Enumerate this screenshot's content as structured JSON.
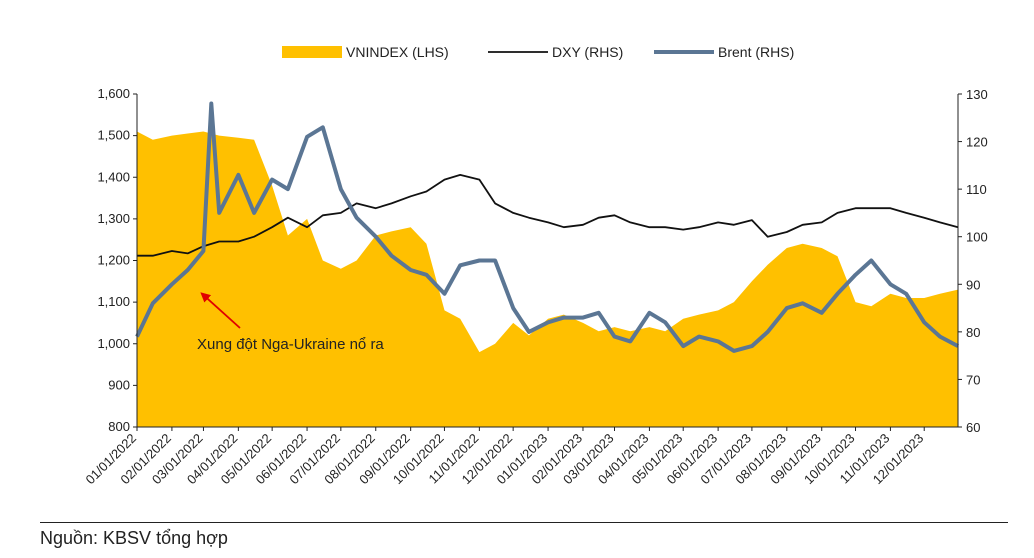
{
  "source_note": "Nguồn: KBSV tổng hợp",
  "chart_data": {
    "type": "area",
    "series": [
      {
        "name": "VNINDEX (LHS)",
        "kind": "area",
        "axis": "left",
        "color": "#FFC000",
        "x": [
          "01/01/2022",
          "01/15/2022",
          "02/01/2022",
          "02/15/2022",
          "03/01/2022",
          "03/15/2022",
          "04/01/2022",
          "04/15/2022",
          "05/01/2022",
          "05/15/2022",
          "06/01/2022",
          "06/15/2022",
          "07/01/2022",
          "07/15/2022",
          "08/01/2022",
          "08/15/2022",
          "09/01/2022",
          "09/15/2022",
          "10/01/2022",
          "10/15/2022",
          "11/01/2022",
          "11/15/2022",
          "12/01/2022",
          "12/15/2022",
          "01/01/2023",
          "01/15/2023",
          "02/01/2023",
          "02/15/2023",
          "03/01/2023",
          "03/15/2023",
          "04/01/2023",
          "04/15/2023",
          "05/01/2023",
          "05/15/2023",
          "06/01/2023",
          "06/15/2023",
          "07/01/2023",
          "07/15/2023",
          "08/01/2023",
          "08/15/2023",
          "09/01/2023",
          "09/15/2023",
          "10/01/2023",
          "10/15/2023",
          "11/01/2023",
          "11/15/2023",
          "12/01/2023",
          "12/15/2023",
          "12/31/2023"
        ],
        "values": [
          1510,
          1490,
          1500,
          1505,
          1510,
          1500,
          1495,
          1490,
          1380,
          1260,
          1300,
          1200,
          1180,
          1200,
          1260,
          1270,
          1280,
          1240,
          1080,
          1060,
          980,
          1000,
          1050,
          1020,
          1060,
          1070,
          1050,
          1030,
          1040,
          1030,
          1040,
          1030,
          1060,
          1070,
          1080,
          1100,
          1150,
          1190,
          1230,
          1240,
          1230,
          1210,
          1100,
          1090,
          1120,
          1110,
          1110,
          1120,
          1130
        ]
      },
      {
        "name": "DXY (RHS)",
        "kind": "line",
        "axis": "right",
        "color": "#111111",
        "x": [
          "01/01/2022",
          "01/15/2022",
          "02/01/2022",
          "02/15/2022",
          "03/01/2022",
          "03/15/2022",
          "04/01/2022",
          "04/15/2022",
          "05/01/2022",
          "05/15/2022",
          "06/01/2022",
          "06/15/2022",
          "07/01/2022",
          "07/15/2022",
          "08/01/2022",
          "08/15/2022",
          "09/01/2022",
          "09/15/2022",
          "10/01/2022",
          "10/15/2022",
          "11/01/2022",
          "11/15/2022",
          "12/01/2022",
          "12/15/2022",
          "01/01/2023",
          "01/15/2023",
          "02/01/2023",
          "02/15/2023",
          "03/01/2023",
          "03/15/2023",
          "04/01/2023",
          "04/15/2023",
          "05/01/2023",
          "05/15/2023",
          "06/01/2023",
          "06/15/2023",
          "07/01/2023",
          "07/15/2023",
          "08/01/2023",
          "08/15/2023",
          "09/01/2023",
          "09/15/2023",
          "10/01/2023",
          "10/15/2023",
          "11/01/2023",
          "11/15/2023",
          "12/01/2023",
          "12/15/2023",
          "12/31/2023"
        ],
        "values": [
          96,
          96,
          97,
          96.5,
          98,
          99,
          99,
          100,
          102,
          104,
          102,
          104.5,
          105,
          107,
          106,
          107,
          108.5,
          109.5,
          112,
          113,
          112,
          107,
          105,
          104,
          103,
          102,
          102.5,
          104,
          104.5,
          103,
          102,
          102,
          101.5,
          102,
          103,
          102.5,
          103.5,
          100,
          101,
          102.5,
          103,
          105,
          106,
          106,
          106,
          105,
          104,
          103,
          102
        ]
      },
      {
        "name": "Brent (RHS)",
        "kind": "line",
        "axis": "right",
        "color": "#5B7694",
        "x": [
          "01/01/2022",
          "01/15/2022",
          "02/01/2022",
          "02/15/2022",
          "03/01/2022",
          "03/08/2022",
          "03/15/2022",
          "04/01/2022",
          "04/15/2022",
          "05/01/2022",
          "05/15/2022",
          "06/01/2022",
          "06/15/2022",
          "07/01/2022",
          "07/15/2022",
          "08/01/2022",
          "08/15/2022",
          "09/01/2022",
          "09/15/2022",
          "10/01/2022",
          "10/15/2022",
          "11/01/2022",
          "11/15/2022",
          "12/01/2022",
          "12/15/2022",
          "01/01/2023",
          "01/15/2023",
          "02/01/2023",
          "02/15/2023",
          "03/01/2023",
          "03/15/2023",
          "04/01/2023",
          "04/15/2023",
          "05/01/2023",
          "05/15/2023",
          "06/01/2023",
          "06/15/2023",
          "07/01/2023",
          "07/15/2023",
          "08/01/2023",
          "08/15/2023",
          "09/01/2023",
          "09/15/2023",
          "10/01/2023",
          "10/15/2023",
          "11/01/2023",
          "11/15/2023",
          "12/01/2023",
          "12/15/2023",
          "12/31/2023"
        ],
        "values": [
          79,
          86,
          90,
          93,
          97,
          128,
          105,
          113,
          105,
          112,
          110,
          121,
          123,
          110,
          104,
          100,
          96,
          93,
          92,
          88,
          94,
          95,
          95,
          85,
          80,
          82,
          83,
          83,
          84,
          79,
          78,
          84,
          82,
          77,
          79,
          78,
          76,
          77,
          80,
          85,
          86,
          84,
          88,
          92,
          95,
          90,
          88,
          82,
          79,
          77
        ]
      }
    ],
    "x_ticks": [
      "01/01/2022",
      "02/01/2022",
      "03/01/2022",
      "04/01/2022",
      "05/01/2022",
      "06/01/2022",
      "07/01/2022",
      "08/01/2022",
      "09/01/2022",
      "10/01/2022",
      "11/01/2022",
      "12/01/2022",
      "01/01/2023",
      "02/01/2023",
      "03/01/2023",
      "04/01/2023",
      "05/01/2023",
      "06/01/2023",
      "07/01/2023",
      "08/01/2023",
      "09/01/2023",
      "10/01/2023",
      "11/01/2023",
      "12/01/2023"
    ],
    "y_left": {
      "min": 800,
      "max": 1600,
      "ticks": [
        "1,600",
        "1,500",
        "1,400",
        "1,300",
        "1,200",
        "1,100",
        "1,000",
        "900",
        "800"
      ],
      "tick_values": [
        1600,
        1500,
        1400,
        1300,
        1200,
        1100,
        1000,
        900,
        800
      ]
    },
    "y_right": {
      "min": 60,
      "max": 130,
      "ticks": [
        "130",
        "120",
        "110",
        "100",
        "90",
        "80",
        "70",
        "60"
      ],
      "tick_values": [
        130,
        120,
        110,
        100,
        90,
        80,
        70,
        60
      ]
    },
    "annotations": [
      {
        "text": "Xung đột Nga-Ukraine nổ ra",
        "x": "02/24/2022",
        "y_left": 1135
      }
    ],
    "legend": {
      "position": "top"
    },
    "grid": false
  }
}
